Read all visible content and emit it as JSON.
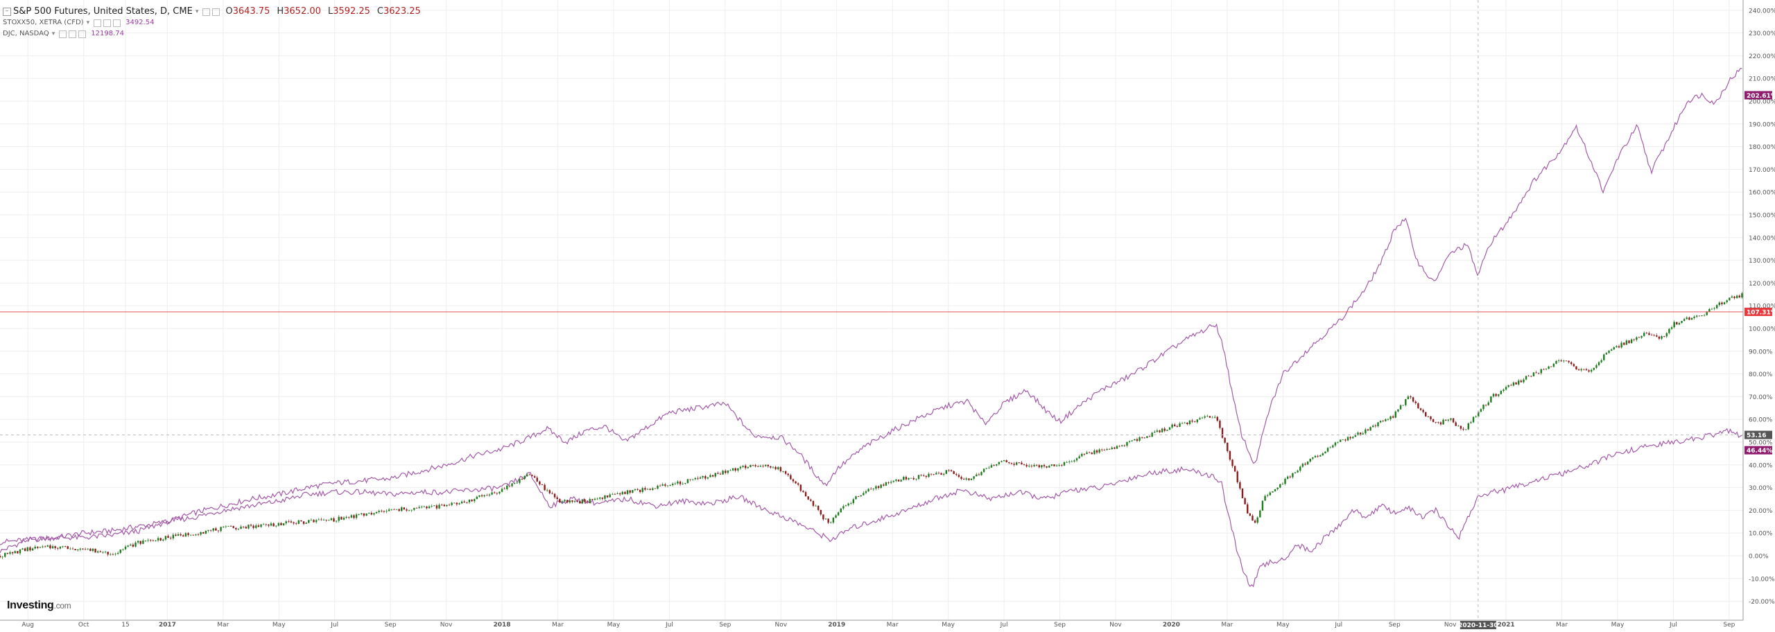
{
  "legend": {
    "main": {
      "name": "S&P 500 Futures, United States, D, CME",
      "open": "3643.75",
      "high": "3652.00",
      "low": "3592.25",
      "close": "3623.25",
      "open_prefix": "O",
      "high_prefix": "H",
      "low_prefix": "L",
      "close_prefix": "C"
    },
    "series2": {
      "name": "STOXX50, XETRA (CFD)",
      "value": "3492.54"
    },
    "series3": {
      "name": "DJC, NASDAQ",
      "value": "12198.74"
    }
  },
  "brand": {
    "name": "Investing",
    "suffix": ".com"
  },
  "crosshair_date": "2020-11-30",
  "colors": {
    "nasdaq": "#a35aa8",
    "stoxx": "#a35aa8",
    "candle_up": "#1e7b1e",
    "candle_down": "#8b1a1a",
    "last_price_line": "#e05050",
    "grid": "#eeeeee",
    "badge_nasdaq": "#8e1d6e",
    "badge_last": "#e8393c",
    "badge_cross": "#555555",
    "badge_stoxx": "#8e1d6e"
  },
  "chart_data": {
    "type": "line",
    "y_unit": "%",
    "ylim": [
      -25,
      245
    ],
    "yticks": [
      "240.00%",
      "230.00%",
      "220.00%",
      "210.00%",
      "200.00%",
      "190.00%",
      "180.00%",
      "170.00%",
      "160.00%",
      "150.00%",
      "140.00%",
      "130.00%",
      "120.00%",
      "110.00%",
      "100.00%",
      "90.00%",
      "80.00%",
      "70.00%",
      "60.00%",
      "50.00%",
      "40.00%",
      "30.00%",
      "20.00%",
      "10.00%",
      "0.00%",
      "-10.00%",
      "-20.00%"
    ],
    "ytick_values": [
      240,
      230,
      220,
      210,
      200,
      190,
      180,
      170,
      160,
      150,
      140,
      130,
      120,
      110,
      100,
      90,
      80,
      70,
      60,
      50,
      40,
      30,
      20,
      10,
      0,
      -10,
      -20
    ],
    "xlim": [
      0,
      62.5
    ],
    "xticks": [
      {
        "label": "Aug",
        "m": 1.0
      },
      {
        "label": "Oct",
        "m": 3.0
      },
      {
        "label": "15",
        "m": 4.5
      },
      {
        "label": "2017",
        "m": 6.0
      },
      {
        "label": "Mar",
        "m": 8.0
      },
      {
        "label": "May",
        "m": 10.0
      },
      {
        "label": "Jul",
        "m": 12.0
      },
      {
        "label": "Sep",
        "m": 14.0
      },
      {
        "label": "Nov",
        "m": 16.0
      },
      {
        "label": "2018",
        "m": 18.0
      },
      {
        "label": "Mar",
        "m": 20.0
      },
      {
        "label": "May",
        "m": 22.0
      },
      {
        "label": "Jul",
        "m": 24.0
      },
      {
        "label": "Sep",
        "m": 26.0
      },
      {
        "label": "Nov",
        "m": 28.0
      },
      {
        "label": "2019",
        "m": 30.0
      },
      {
        "label": "Mar",
        "m": 32.0
      },
      {
        "label": "May",
        "m": 34.0
      },
      {
        "label": "Jul",
        "m": 36.0
      },
      {
        "label": "Sep",
        "m": 38.0
      },
      {
        "label": "Nov",
        "m": 40.0
      },
      {
        "label": "2020",
        "m": 42.0
      },
      {
        "label": "Mar",
        "m": 44.0
      },
      {
        "label": "May",
        "m": 46.0
      },
      {
        "label": "Jul",
        "m": 48.0
      },
      {
        "label": "Sep",
        "m": 50.0
      },
      {
        "label": "Nov",
        "m": 52.0
      },
      {
        "label": "2021",
        "m": 54.0
      },
      {
        "label": "Mar",
        "m": 56.0
      },
      {
        "label": "May",
        "m": 58.0
      },
      {
        "label": "Jul",
        "m": 60.0
      },
      {
        "label": "Sep",
        "m": 62.0
      }
    ],
    "crosshair": {
      "m": 53.0,
      "y": 53.16,
      "y_label": "53.16"
    },
    "last_price": {
      "y": 107.31,
      "label": "107.31%"
    },
    "end_labels": [
      {
        "series": "nasdaq",
        "y": 202.61,
        "label": "202.61%"
      },
      {
        "series": "stoxx",
        "y": 46.44,
        "label": "46.44%"
      }
    ],
    "series": [
      {
        "key": "nasdaq",
        "name": "DJC, NASDAQ",
        "style": "line",
        "points": [
          [
            0,
            2
          ],
          [
            1,
            7
          ],
          [
            2,
            8
          ],
          [
            3,
            10
          ],
          [
            4,
            11
          ],
          [
            5,
            13
          ],
          [
            6,
            15
          ],
          [
            7,
            19
          ],
          [
            8,
            22
          ],
          [
            9,
            25
          ],
          [
            10,
            27
          ],
          [
            11,
            30
          ],
          [
            12,
            32
          ],
          [
            13,
            33
          ],
          [
            14,
            34
          ],
          [
            15,
            37
          ],
          [
            16,
            40
          ],
          [
            17,
            44
          ],
          [
            18,
            47
          ],
          [
            19,
            52
          ],
          [
            19.6,
            56
          ],
          [
            20.3,
            50
          ],
          [
            21,
            55
          ],
          [
            21.7,
            57
          ],
          [
            22.4,
            50
          ],
          [
            23,
            55
          ],
          [
            24,
            63
          ],
          [
            25,
            65
          ],
          [
            26,
            67
          ],
          [
            26.5,
            60
          ],
          [
            27,
            53
          ],
          [
            28,
            52
          ],
          [
            28.6,
            46
          ],
          [
            29.3,
            35
          ],
          [
            29.6,
            31
          ],
          [
            30,
            38
          ],
          [
            31,
            48
          ],
          [
            32,
            55
          ],
          [
            33,
            61
          ],
          [
            34,
            66
          ],
          [
            34.7,
            68
          ],
          [
            35.3,
            58
          ],
          [
            36,
            67
          ],
          [
            36.8,
            73
          ],
          [
            37.5,
            64
          ],
          [
            38,
            59
          ],
          [
            38.8,
            67
          ],
          [
            39.5,
            73
          ],
          [
            40.5,
            79
          ],
          [
            41.5,
            87
          ],
          [
            42.5,
            95
          ],
          [
            43.3,
            100
          ],
          [
            43.6,
            102
          ],
          [
            43.9,
            90
          ],
          [
            44.2,
            70
          ],
          [
            44.5,
            54
          ],
          [
            44.8,
            45
          ],
          [
            45,
            40
          ],
          [
            45.5,
            64
          ],
          [
            46,
            80
          ],
          [
            46.5,
            86
          ],
          [
            47,
            92
          ],
          [
            48,
            103
          ],
          [
            49,
            118
          ],
          [
            49.6,
            131
          ],
          [
            50,
            144
          ],
          [
            50.4,
            148
          ],
          [
            50.8,
            130
          ],
          [
            51.4,
            120
          ],
          [
            52,
            133
          ],
          [
            52.6,
            137
          ],
          [
            53,
            123
          ],
          [
            53.4,
            137
          ],
          [
            54,
            146
          ],
          [
            55,
            165
          ],
          [
            56,
            179
          ],
          [
            56.5,
            189
          ],
          [
            57,
            175
          ],
          [
            57.5,
            160
          ],
          [
            58,
            175
          ],
          [
            58.7,
            189
          ],
          [
            59.2,
            169
          ],
          [
            59.8,
            183
          ],
          [
            60.5,
            200
          ],
          [
            61,
            203
          ],
          [
            61.5,
            199
          ],
          [
            62,
            209
          ],
          [
            62.4,
            214
          ],
          [
            62.8,
            210
          ],
          [
            63,
            203
          ]
        ]
      },
      {
        "key": "stoxx",
        "name": "STOXX50, XETRA (CFD)",
        "style": "line",
        "points": [
          [
            0,
            6
          ],
          [
            1,
            7
          ],
          [
            2,
            8
          ],
          [
            3,
            8
          ],
          [
            4,
            9
          ],
          [
            5,
            11
          ],
          [
            6,
            15
          ],
          [
            7,
            17
          ],
          [
            8,
            20
          ],
          [
            9,
            22
          ],
          [
            10,
            24
          ],
          [
            11,
            27
          ],
          [
            12,
            28
          ],
          [
            13,
            28
          ],
          [
            14,
            27
          ],
          [
            15,
            28
          ],
          [
            16,
            28
          ],
          [
            17,
            29
          ],
          [
            18,
            30
          ],
          [
            19,
            36
          ],
          [
            19.7,
            22
          ],
          [
            20.5,
            25
          ],
          [
            21.5,
            23
          ],
          [
            22.5,
            25
          ],
          [
            23.5,
            22
          ],
          [
            24.5,
            24
          ],
          [
            25.5,
            23
          ],
          [
            26.5,
            26
          ],
          [
            27.5,
            20
          ],
          [
            28.5,
            15
          ],
          [
            29.3,
            10
          ],
          [
            29.8,
            7
          ],
          [
            30.5,
            12
          ],
          [
            31.5,
            16
          ],
          [
            32.5,
            20
          ],
          [
            33.5,
            25
          ],
          [
            34.5,
            29
          ],
          [
            35.5,
            25
          ],
          [
            36.5,
            28
          ],
          [
            37.5,
            25
          ],
          [
            38.5,
            29
          ],
          [
            39.5,
            30
          ],
          [
            40.5,
            34
          ],
          [
            41.5,
            37
          ],
          [
            42.5,
            38
          ],
          [
            43.5,
            35
          ],
          [
            43.8,
            32
          ],
          [
            44,
            20
          ],
          [
            44.3,
            5
          ],
          [
            44.6,
            -8
          ],
          [
            44.9,
            -14
          ],
          [
            45.2,
            -5
          ],
          [
            45.5,
            -3
          ],
          [
            46,
            -2
          ],
          [
            46.5,
            5
          ],
          [
            47,
            2
          ],
          [
            47.5,
            8
          ],
          [
            48,
            13
          ],
          [
            48.5,
            20
          ],
          [
            49,
            17
          ],
          [
            49.5,
            22
          ],
          [
            50,
            19
          ],
          [
            50.5,
            21
          ],
          [
            51,
            17
          ],
          [
            51.5,
            20
          ],
          [
            52,
            12
          ],
          [
            52.3,
            8
          ],
          [
            52.6,
            16
          ],
          [
            53,
            26
          ],
          [
            53.5,
            28
          ],
          [
            54,
            29
          ],
          [
            55,
            33
          ],
          [
            56,
            36
          ],
          [
            57,
            40
          ],
          [
            58,
            45
          ],
          [
            59,
            48
          ],
          [
            60,
            50
          ],
          [
            61,
            52
          ],
          [
            62,
            55
          ],
          [
            62.5,
            52
          ],
          [
            63,
            46
          ]
        ]
      },
      {
        "key": "spx",
        "name": "S&P 500 Futures, United States, D, CME",
        "style": "candle",
        "points": [
          [
            0,
            0
          ],
          [
            1,
            3
          ],
          [
            2,
            4
          ],
          [
            3,
            3
          ],
          [
            4,
            1
          ],
          [
            5,
            6
          ],
          [
            6,
            8
          ],
          [
            7,
            10
          ],
          [
            8,
            12
          ],
          [
            9,
            13
          ],
          [
            10,
            14
          ],
          [
            11,
            15
          ],
          [
            12,
            16
          ],
          [
            13,
            18
          ],
          [
            14,
            20
          ],
          [
            15,
            21
          ],
          [
            16,
            22
          ],
          [
            17,
            25
          ],
          [
            18,
            29
          ],
          [
            19,
            36
          ],
          [
            19.5,
            30
          ],
          [
            20,
            24
          ],
          [
            21,
            24
          ],
          [
            22,
            27
          ],
          [
            23,
            29
          ],
          [
            24,
            31
          ],
          [
            25,
            34
          ],
          [
            26,
            37
          ],
          [
            27,
            40
          ],
          [
            28,
            38
          ],
          [
            28.6,
            31
          ],
          [
            29.2,
            22
          ],
          [
            29.7,
            14
          ],
          [
            30.3,
            22
          ],
          [
            31,
            28
          ],
          [
            32,
            33
          ],
          [
            33,
            35
          ],
          [
            34,
            37
          ],
          [
            34.7,
            33
          ],
          [
            35.3,
            38
          ],
          [
            36,
            42
          ],
          [
            37,
            39
          ],
          [
            38,
            40
          ],
          [
            39,
            45
          ],
          [
            40,
            48
          ],
          [
            41,
            52
          ],
          [
            42,
            57
          ],
          [
            43,
            60
          ],
          [
            43.6,
            62
          ],
          [
            43.9,
            50
          ],
          [
            44.3,
            36
          ],
          [
            44.7,
            20
          ],
          [
            45,
            14
          ],
          [
            45.3,
            25
          ],
          [
            45.8,
            30
          ],
          [
            46.5,
            38
          ],
          [
            47,
            42
          ],
          [
            48,
            50
          ],
          [
            49,
            55
          ],
          [
            50,
            62
          ],
          [
            50.5,
            70
          ],
          [
            51,
            63
          ],
          [
            51.5,
            58
          ],
          [
            52,
            60
          ],
          [
            52.5,
            55
          ],
          [
            53,
            63
          ],
          [
            53.5,
            70
          ],
          [
            54,
            74
          ],
          [
            55,
            80
          ],
          [
            56,
            86
          ],
          [
            57,
            80
          ],
          [
            57.5,
            88
          ],
          [
            58,
            92
          ],
          [
            59,
            98
          ],
          [
            59.5,
            95
          ],
          [
            60,
            102
          ],
          [
            61,
            106
          ],
          [
            62,
            113
          ],
          [
            62.5,
            115
          ],
          [
            62.9,
            112
          ],
          [
            63,
            107.31
          ]
        ]
      }
    ]
  }
}
